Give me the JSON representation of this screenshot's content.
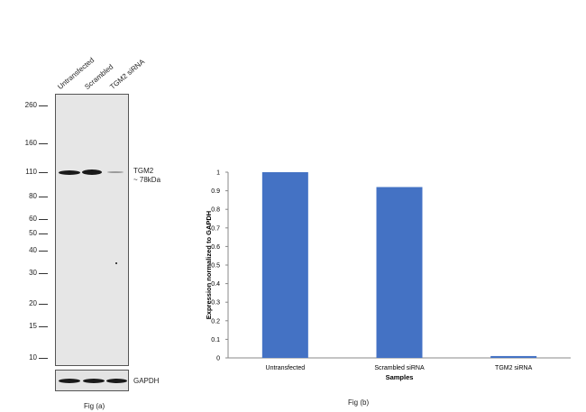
{
  "western_blot": {
    "lanes": [
      "Untransfected",
      "Scrambled",
      "TGM2  siRNA"
    ],
    "markers": [
      "260",
      "160",
      "110",
      "80",
      "60",
      "50",
      "40",
      "30",
      "20",
      "15",
      "10"
    ],
    "band_label_line1": "TGM2",
    "band_label_line2": "~ 78kDa",
    "loading_control": "GAPDH",
    "caption": "Fig (a)"
  },
  "caption_b": "Fig (b)",
  "chart_data": {
    "type": "bar",
    "categories": [
      "Untransfected",
      "Scrambled siRNA",
      "TGM2 siRNA"
    ],
    "values": [
      1.0,
      0.92,
      0.01
    ],
    "xlabel": "Samples",
    "ylabel": "Expression  normalized to GAPDH",
    "ylim": [
      0,
      1
    ],
    "yticks": [
      "0",
      "0.1",
      "0.2",
      "0.3",
      "0.4",
      "0.5",
      "0.6",
      "0.7",
      "0.8",
      "0.9",
      "1"
    ],
    "bar_color": "#4472c4",
    "grid": false
  }
}
